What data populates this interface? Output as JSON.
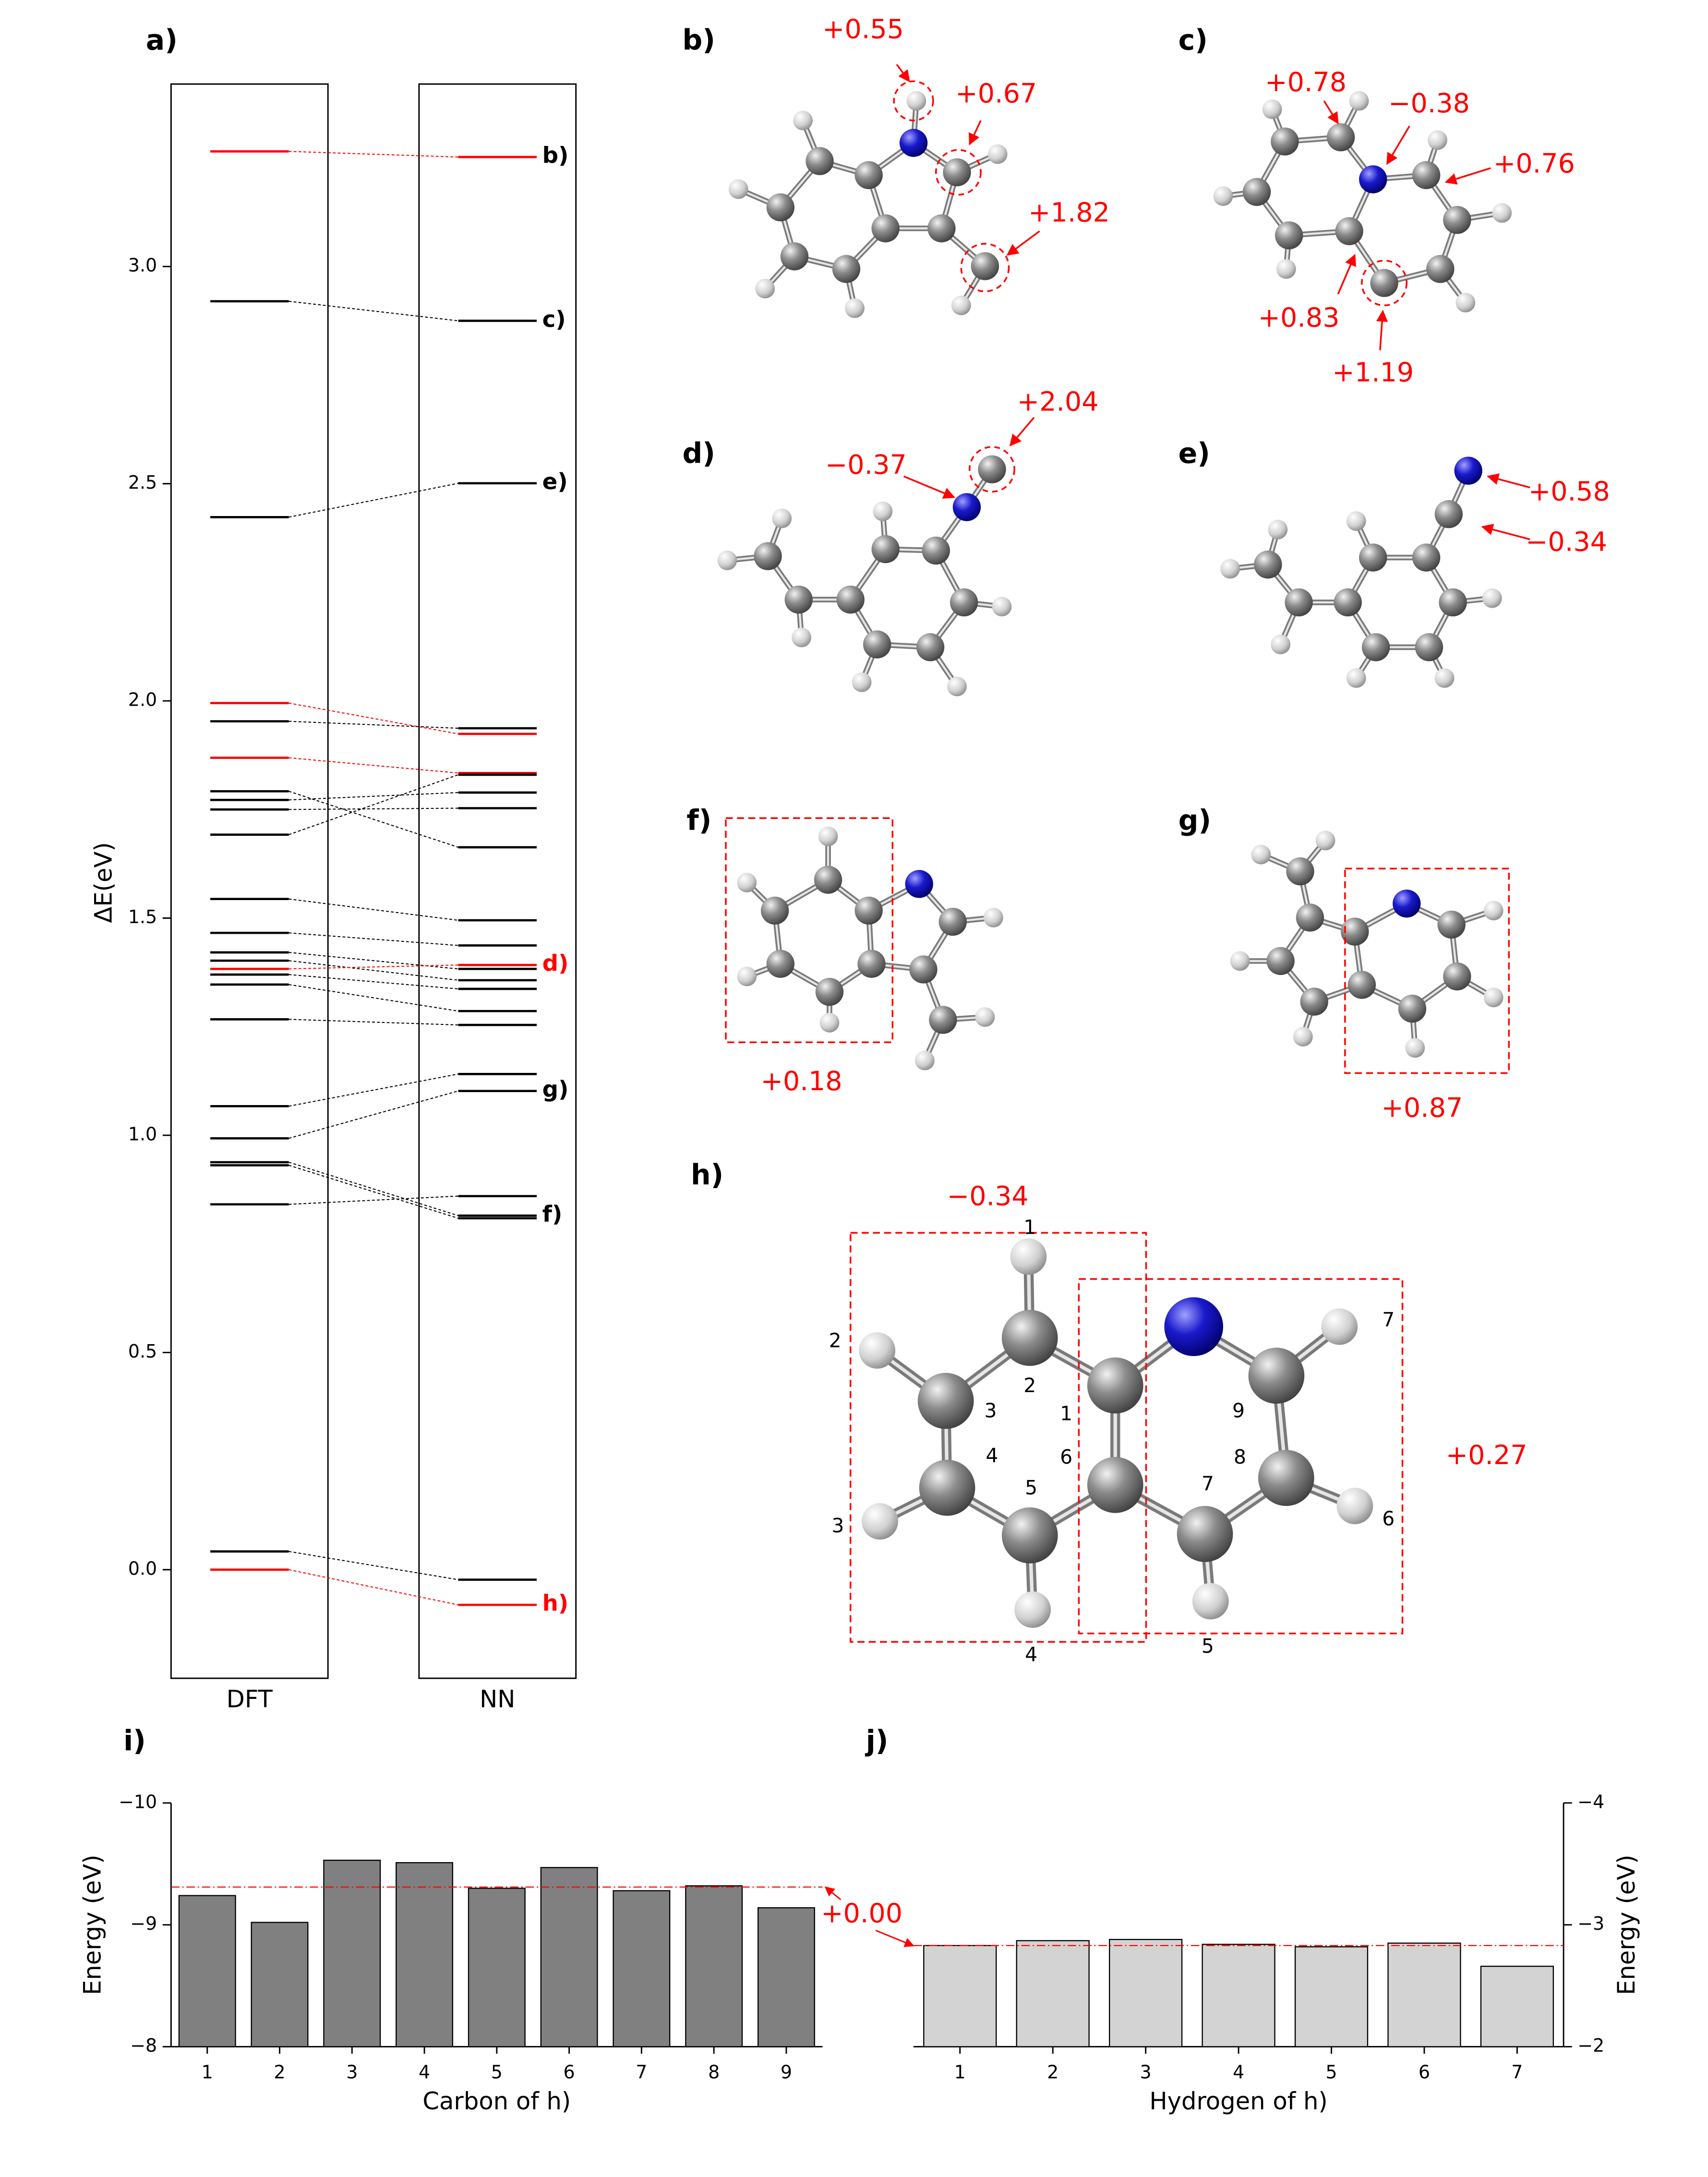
{
  "chart_data": [
    {
      "type": "levels",
      "panel_label": "a)",
      "ylabel": "ΔE(eV)",
      "ylim": [
        -0.25,
        3.42
      ],
      "yticks": [
        {
          "value": 0,
          "label": "0.0"
        },
        {
          "value": 0.5,
          "label": "0.5"
        },
        {
          "value": 1,
          "label": "1.0"
        },
        {
          "value": 1.5,
          "label": "1.5"
        },
        {
          "value": 2,
          "label": "2.0"
        },
        {
          "value": 2.5,
          "label": "2.5"
        },
        {
          "value": 3,
          "label": "3.0"
        }
      ],
      "series": [
        {
          "name": "DFT",
          "values": [
            3.265,
            2.92,
            2.423,
            1.995,
            1.953,
            1.869,
            1.792,
            1.772,
            1.75,
            1.692,
            1.544,
            1.466,
            1.421,
            1.402,
            1.383,
            1.37,
            1.347,
            1.267,
            1.067,
            0.993,
            0.938,
            0.931,
            0.841,
            0.042,
            0.0
          ]
        },
        {
          "name": "NN",
          "values": [
            3.252,
            2.875,
            2.501,
            1.924,
            1.937,
            1.834,
            1.663,
            1.789,
            1.753,
            1.83,
            1.495,
            1.437,
            1.383,
            1.357,
            1.392,
            1.337,
            1.286,
            1.254,
            1.141,
            1.102,
            0.815,
            0.809,
            0.86,
            -0.023,
            -0.081
          ]
        }
      ],
      "level_colors": [
        "#ff0000",
        "#000000",
        "#000000",
        "#ff0000",
        "#000000",
        "#ff0000",
        "#000000",
        "#000000",
        "#000000",
        "#000000",
        "#000000",
        "#000000",
        "#000000",
        "#000000",
        "#ff0000",
        "#000000",
        "#000000",
        "#000000",
        "#000000",
        "#000000",
        "#000000",
        "#000000",
        "#000000",
        "#000000",
        "#ff0000"
      ],
      "level_labels": [
        "b)",
        "c)",
        "e)",
        null,
        null,
        null,
        null,
        null,
        null,
        null,
        null,
        null,
        null,
        null,
        "d)",
        null,
        null,
        null,
        null,
        "g)",
        "f)",
        null,
        null,
        null,
        "h)"
      ],
      "level_label_colors": [
        "#000000",
        "#000000",
        "#000000",
        null,
        null,
        null,
        null,
        null,
        null,
        null,
        null,
        null,
        null,
        null,
        "#ff0000",
        null,
        null,
        null,
        null,
        "#000000",
        "#000000",
        null,
        null,
        null,
        "#ff0000"
      ]
    },
    {
      "type": "bar",
      "panel_label": "i)",
      "y_axis_side": "left",
      "categories": [
        "1",
        "2",
        "3",
        "4",
        "5",
        "6",
        "7",
        "8",
        "9"
      ],
      "values": [
        -9.24,
        -9.02,
        -9.53,
        -9.51,
        -9.3,
        -9.47,
        -9.28,
        -9.32,
        -9.14
      ],
      "color": "#808080",
      "ylim": [
        -8,
        -10
      ],
      "yticks": [
        {
          "value": -10,
          "label": "−10"
        },
        {
          "value": -9,
          "label": "−9"
        },
        {
          "value": -8,
          "label": "−8"
        }
      ],
      "ylabel": "Energy (eV)",
      "xlabel": "Carbon of h)",
      "reference_line": -9.31,
      "annotation": "+0.00"
    },
    {
      "type": "bar",
      "panel_label": "j)",
      "y_axis_side": "right",
      "categories": [
        "1",
        "2",
        "3",
        "4",
        "5",
        "6",
        "7"
      ],
      "values": [
        -2.83,
        -2.87,
        -2.88,
        -2.84,
        -2.82,
        -2.85,
        -2.66
      ],
      "color": "#d3d3d3",
      "ylim": [
        -2,
        -4
      ],
      "yticks": [
        {
          "value": -4,
          "label": "−4"
        },
        {
          "value": -3,
          "label": "−3"
        },
        {
          "value": -2,
          "label": "−2"
        }
      ],
      "ylabel": "Energy (eV)",
      "xlabel": "Hydrogen of h)",
      "reference_line": -2.83
    }
  ],
  "structures": [
    {
      "panel_label": "b)",
      "annotations": [
        "+0.55",
        "+0.67",
        "+1.82"
      ]
    },
    {
      "panel_label": "c)",
      "annotations": [
        "+0.78",
        "−0.38",
        "+0.76",
        "+0.83",
        "+1.19"
      ]
    },
    {
      "panel_label": "d)",
      "annotations": [
        "−0.37",
        "+2.04"
      ]
    },
    {
      "panel_label": "e)",
      "annotations": [
        "+0.58",
        "−0.34"
      ]
    },
    {
      "panel_label": "f)",
      "annotations": [
        "+0.18"
      ]
    },
    {
      "panel_label": "g)",
      "annotations": [
        "+0.87"
      ]
    },
    {
      "panel_label": "h)",
      "annotations": [
        "−0.34",
        "+0.27"
      ],
      "carbon_labels": [
        "1",
        "2",
        "3",
        "4",
        "5",
        "6",
        "7",
        "8",
        "9"
      ],
      "hydrogen_labels": [
        "1",
        "2",
        "3",
        "4",
        "5",
        "6",
        "7"
      ]
    }
  ]
}
